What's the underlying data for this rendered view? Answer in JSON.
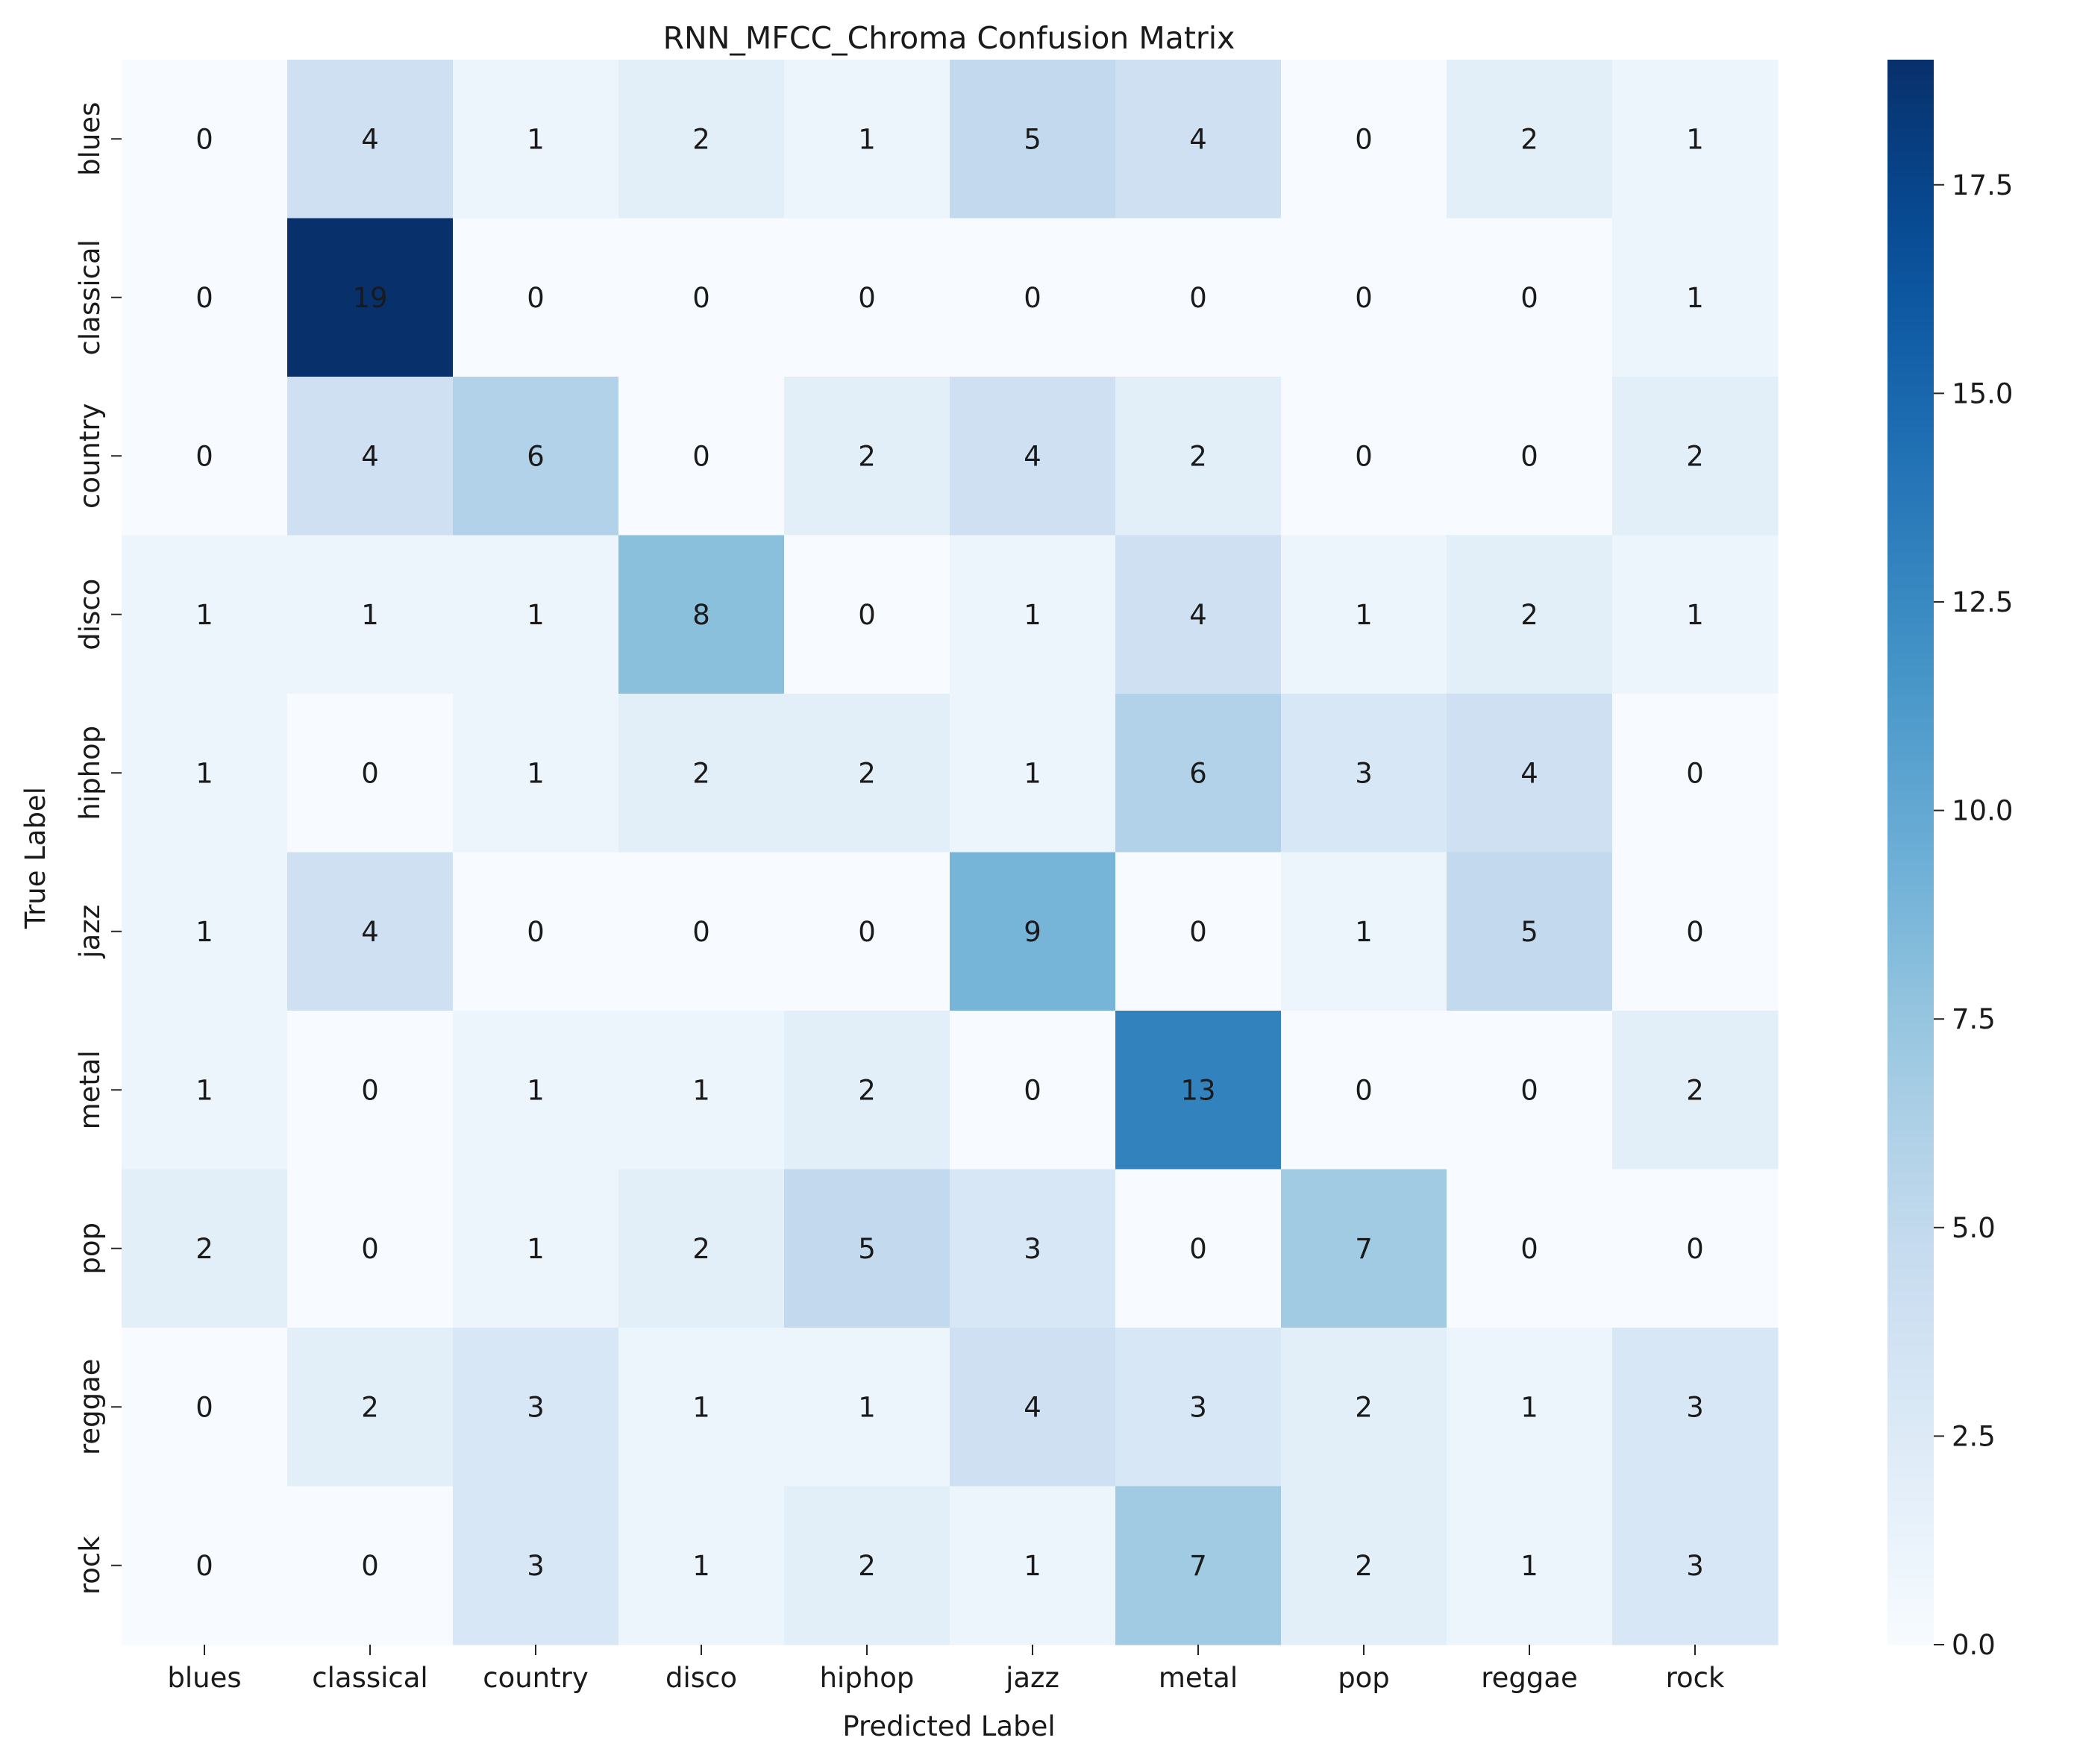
{
  "chart_data": {
    "type": "heatmap",
    "title": "RNN_MFCC_Chroma Confusion Matrix",
    "xlabel": "Predicted Label",
    "ylabel": "True Label",
    "x_categories": [
      "blues",
      "classical",
      "country",
      "disco",
      "hiphop",
      "jazz",
      "metal",
      "pop",
      "reggae",
      "rock"
    ],
    "y_categories": [
      "blues",
      "classical",
      "country",
      "disco",
      "hiphop",
      "jazz",
      "metal",
      "pop",
      "reggae",
      "rock"
    ],
    "values": [
      [
        0,
        4,
        1,
        2,
        1,
        5,
        4,
        0,
        2,
        1
      ],
      [
        0,
        19,
        0,
        0,
        0,
        0,
        0,
        0,
        0,
        1
      ],
      [
        0,
        4,
        6,
        0,
        2,
        4,
        2,
        0,
        0,
        2
      ],
      [
        1,
        1,
        1,
        8,
        0,
        1,
        4,
        1,
        2,
        1
      ],
      [
        1,
        0,
        1,
        2,
        2,
        1,
        6,
        3,
        4,
        0
      ],
      [
        1,
        4,
        0,
        0,
        0,
        9,
        0,
        1,
        5,
        0
      ],
      [
        1,
        0,
        1,
        1,
        2,
        0,
        13,
        0,
        0,
        2
      ],
      [
        2,
        0,
        1,
        2,
        5,
        3,
        0,
        7,
        0,
        0
      ],
      [
        0,
        2,
        3,
        1,
        1,
        4,
        3,
        2,
        1,
        3
      ],
      [
        0,
        0,
        3,
        1,
        2,
        1,
        7,
        2,
        1,
        3
      ]
    ],
    "colormap": "Blues",
    "vmin": 0,
    "vmax": 19,
    "colorbar_ticks": [
      "0.0",
      "2.5",
      "5.0",
      "7.5",
      "10.0",
      "12.5",
      "15.0",
      "17.5"
    ],
    "colors": {
      "low": "#f7fbff",
      "high": "#08306b",
      "text_dark": "#262626",
      "text_light": "#ffffff"
    }
  }
}
